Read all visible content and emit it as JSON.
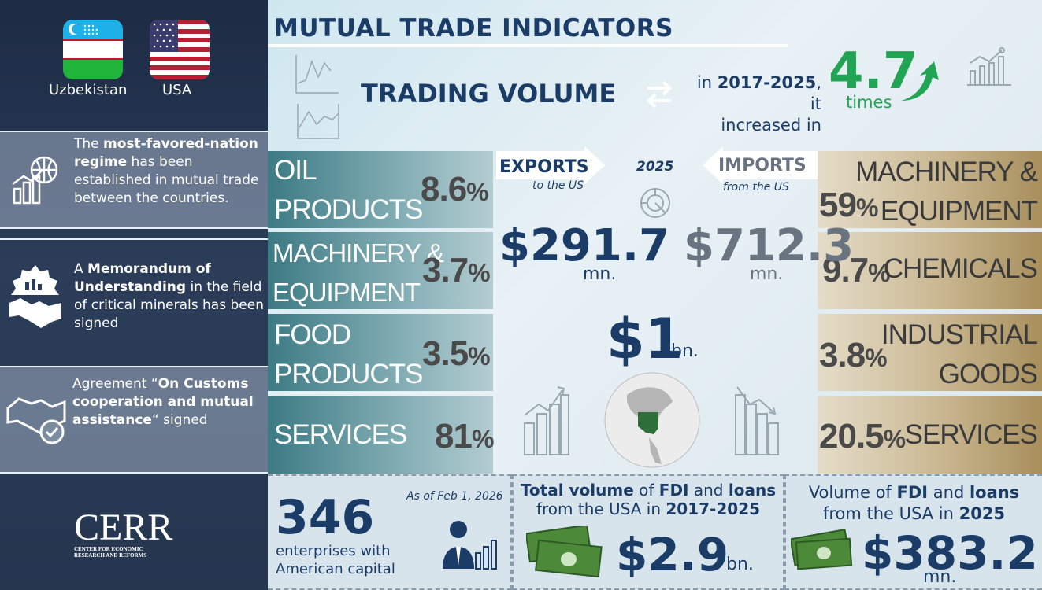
{
  "left": {
    "flags": [
      {
        "country": "Uzbekistan"
      },
      {
        "country": "USA"
      }
    ],
    "bands": [
      {
        "pre": "The ",
        "bold": "most-favored-nation regime",
        "post": " has been established in mutual trade between the countries."
      },
      {
        "pre": "A ",
        "bold": "Memorandum of Understanding",
        "post": " in the field of critical minerals has been signed"
      },
      {
        "pre": "Agreement “",
        "bold": "On Customs cooperation and mutual assistance",
        "post": "“ signed"
      }
    ],
    "logo": {
      "name": "CERR",
      "sub1": "CENTER FOR ECONOMIC",
      "sub2": "RESEARCH AND REFORMS"
    }
  },
  "header": {
    "title": "MUTUAL TRADE INDICATORS",
    "trading_volume": "TRADING VOLUME",
    "in_pre": "in ",
    "period": "2017-2025",
    "in_post": ", it",
    "increased": "increased in",
    "multiplier": "4.7",
    "times": "times"
  },
  "exports": {
    "label": "EXPORTS",
    "sub": "to the US",
    "year": "2025",
    "value": "$291.7",
    "unit": "mn.",
    "rows": [
      {
        "label1": "OIL",
        "label2": "PRODUCTS",
        "pct": "8.6"
      },
      {
        "label1": "MACHINERY &",
        "label2": "EQUIPMENT",
        "pct": "3.7"
      },
      {
        "label1": "FOOD",
        "label2": "PRODUCTS",
        "pct": "3.5"
      },
      {
        "label1": "SERVICES",
        "label2": "",
        "pct": "81"
      }
    ]
  },
  "imports": {
    "label": "IMPORTS",
    "sub": "from the US",
    "value": "$712.3",
    "unit": "mn.",
    "rows": [
      {
        "label1": "MACHINERY &",
        "label2": "EQUIPMENT",
        "pct": "59"
      },
      {
        "label1": "CHEMICALS",
        "label2": "",
        "pct": "9.7"
      },
      {
        "label1": "INDUSTRIAL",
        "label2": "GOODS",
        "pct": "3.8"
      },
      {
        "label1": "SERVICES",
        "label2": "",
        "pct": "20.5"
      }
    ]
  },
  "total": {
    "value": "$1",
    "unit": "bn."
  },
  "pct_sign": "%",
  "bottom": {
    "enterprises": {
      "as_of": "As of Feb 1, 2026",
      "count": "346",
      "line1": "enterprises with",
      "line2": "American capital"
    },
    "fdi_total": {
      "l1_bold1": "Total volume",
      "l1_mid": " of ",
      "l1_bold2": "FDI",
      "l1_and": " and ",
      "l1_bold3": "loans",
      "l2_pre": "from the USA in ",
      "l2_bold": "2017-2025",
      "value": "$2.9",
      "unit": "bn."
    },
    "fdi_2025": {
      "l1_pre": "Volume of ",
      "l1_bold1": "FDI",
      "l1_and": " and ",
      "l1_bold2": "loans",
      "l2_pre": "from the USA in ",
      "l2_bold": "2025",
      "value": "$383.2",
      "unit": "mn."
    }
  },
  "colors": {
    "navy": "#1c3c68",
    "green": "#22a455",
    "teal": "#3c7a84",
    "gold": "#a88f5c"
  }
}
